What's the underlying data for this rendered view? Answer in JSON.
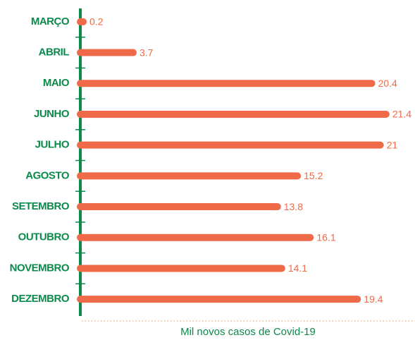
{
  "chart_data": {
    "type": "bar",
    "orientation": "horizontal",
    "categories": [
      "MARÇO",
      "ABRIL",
      "MAIO",
      "JUNHO",
      "JULHO",
      "AGOSTO",
      "SETEMBRO",
      "OUTUBRO",
      "NOVEMBRO",
      "DEZEMBRO"
    ],
    "values": [
      0.2,
      3.7,
      20.4,
      21.4,
      21,
      15.2,
      13.8,
      16.1,
      14.1,
      19.4
    ],
    "color": "#ef6a48",
    "xlabel": "Mil novos casos de Covid-19",
    "xlim": [
      0,
      22
    ]
  }
}
